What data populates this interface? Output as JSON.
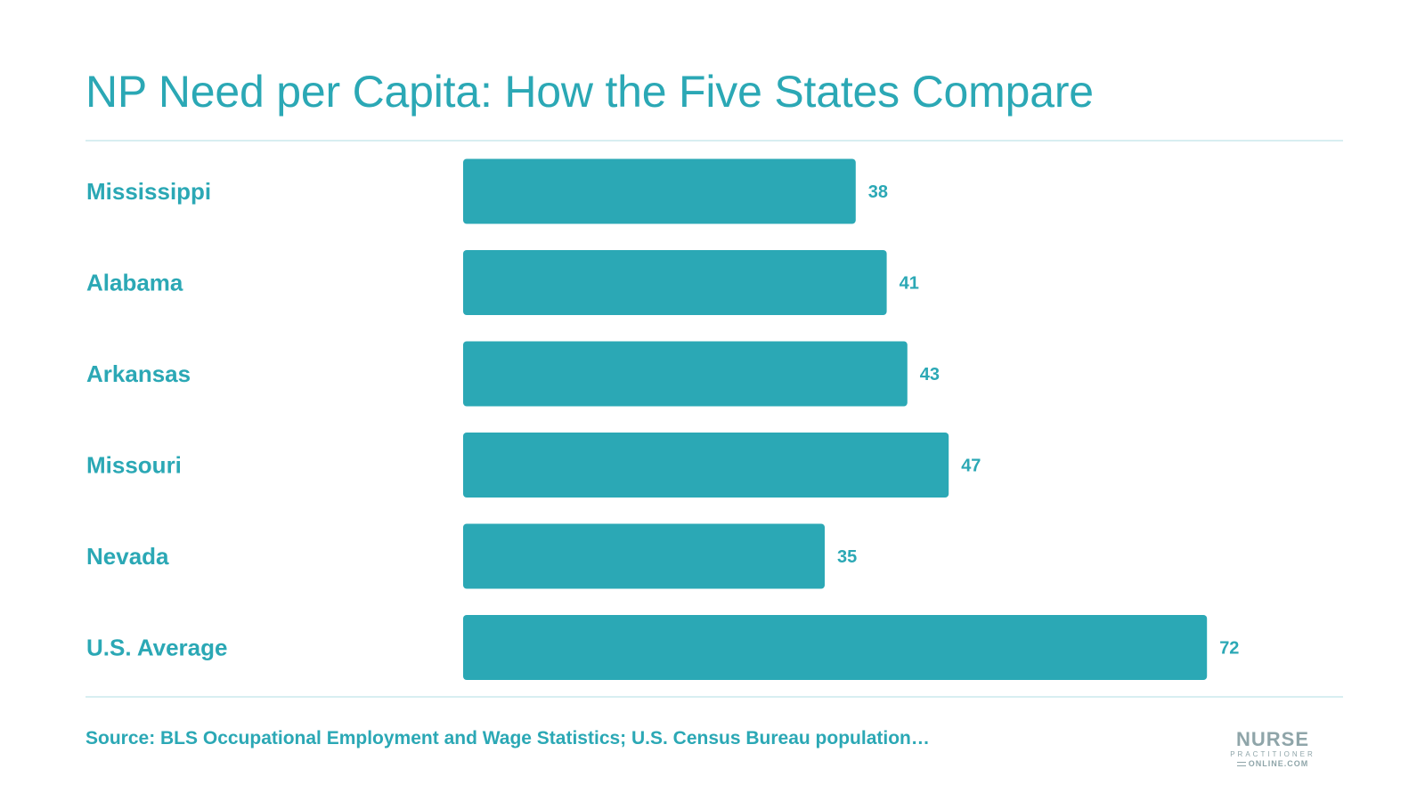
{
  "chart_data": {
    "type": "bar",
    "orientation": "horizontal",
    "title": "NP Need per Capita: How the Five States Compare",
    "categories": [
      "Mississippi",
      "Alabama",
      "Arkansas",
      "Missouri",
      "Nevada",
      "U.S. Average"
    ],
    "values": [
      38,
      41,
      43,
      47,
      35,
      72
    ],
    "data_labels": [
      "38",
      "41",
      "43",
      "47",
      "35",
      "72"
    ],
    "xlim": [
      0,
      72
    ],
    "grid": false,
    "legend": "none",
    "bar_color": "#2BA8B5",
    "text_color": "#2BA8B5",
    "rule_color": "#D8EEF1"
  },
  "footer": {
    "source": "Source: BLS Occupational Employment and Wage Statistics; U.S. Census Bureau population…"
  },
  "logo": {
    "line1": "NURSE",
    "line2": "PRACTITIONER",
    "line3": "ONLINE.COM",
    "color": "#8FA5A9"
  }
}
